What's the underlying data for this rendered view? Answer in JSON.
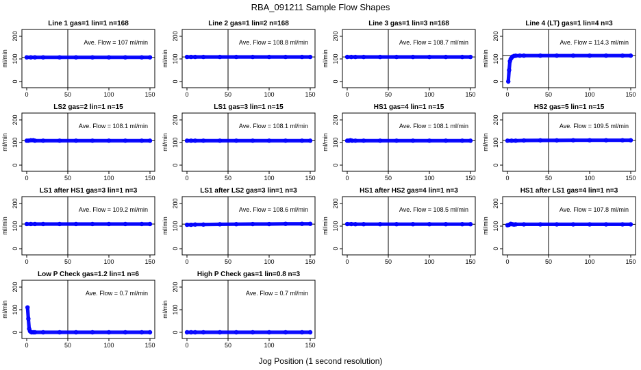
{
  "figure": {
    "title": "RBA_091211  Sample Flow Shapes",
    "xlabel": "Jog Position (1 second resolution)"
  },
  "chart_data": [
    {
      "type": "scatter",
      "title": "Line 1 gas=1 lin=1 n=168",
      "ylabel": "ml/min",
      "annotation": "Ave. Flow =  107  ml/min",
      "xlim": [
        0,
        150
      ],
      "ylim": [
        0,
        200
      ],
      "xticks": [
        0,
        50,
        100,
        150
      ],
      "yticks": [
        0,
        100,
        200
      ],
      "vline_x": 50,
      "hline_y": 107,
      "series": [
        {
          "name": "",
          "color": "#0000ff",
          "x": [
            0,
            5,
            10,
            20,
            40,
            60,
            80,
            100,
            120,
            140,
            150
          ],
          "y": [
            107,
            107,
            107,
            107,
            107,
            107,
            107,
            107,
            107,
            107,
            107
          ]
        }
      ]
    },
    {
      "type": "scatter",
      "title": "Line 2 gas=1 lin=2 n=168",
      "ylabel": "ml/min",
      "annotation": "Ave. Flow =  108.8  ml/min",
      "xlim": [
        0,
        150
      ],
      "ylim": [
        0,
        200
      ],
      "xticks": [
        0,
        50,
        100,
        150
      ],
      "yticks": [
        0,
        100,
        200
      ],
      "vline_x": 50,
      "hline_y": 108.8,
      "series": [
        {
          "name": "",
          "color": "#0000ff",
          "x": [
            0,
            5,
            10,
            20,
            40,
            60,
            80,
            100,
            120,
            140,
            150
          ],
          "y": [
            108.8,
            108.8,
            108.8,
            108.8,
            108.8,
            108.8,
            108.8,
            108.8,
            108.8,
            108.8,
            108.8
          ]
        }
      ]
    },
    {
      "type": "scatter",
      "title": "Line 3 gas=1 lin=3 n=168",
      "ylabel": "ml/min",
      "annotation": "Ave. Flow =  108.7  ml/min",
      "xlim": [
        0,
        150
      ],
      "ylim": [
        0,
        200
      ],
      "xticks": [
        0,
        50,
        100,
        150
      ],
      "yticks": [
        0,
        100,
        200
      ],
      "vline_x": 50,
      "hline_y": 108.7,
      "series": [
        {
          "name": "",
          "color": "#0000ff",
          "x": [
            0,
            5,
            10,
            20,
            40,
            60,
            80,
            100,
            120,
            140,
            150
          ],
          "y": [
            108.7,
            108.7,
            108.7,
            108.7,
            108.7,
            108.7,
            108.7,
            108.7,
            108.7,
            108.7,
            108.7
          ]
        }
      ]
    },
    {
      "type": "scatter",
      "title": "Line 4 (LT) gas=1 lin=4 n=3",
      "ylabel": "ml/min",
      "annotation": "Ave. Flow =  114.3  ml/min",
      "xlim": [
        0,
        150
      ],
      "ylim": [
        0,
        200
      ],
      "xticks": [
        0,
        50,
        100,
        150
      ],
      "yticks": [
        0,
        100,
        200
      ],
      "vline_x": 50,
      "hline_y": 114.3,
      "series": [
        {
          "name": "",
          "color": "#0000ff",
          "x": [
            1,
            2,
            3,
            4,
            5,
            6,
            8,
            10,
            15,
            20,
            40,
            60,
            80,
            100,
            120,
            140,
            150
          ],
          "y": [
            0,
            50,
            90,
            100,
            105,
            110,
            113,
            114,
            114.5,
            114.5,
            114.5,
            114.5,
            114.5,
            114.5,
            114.5,
            114.5,
            114.5
          ]
        }
      ]
    },
    {
      "type": "scatter",
      "title": "LS2 gas=2 lin=1 n=15",
      "ylabel": "ml/min",
      "annotation": "Ave. Flow =  108.1  ml/min",
      "xlim": [
        0,
        150
      ],
      "ylim": [
        0,
        200
      ],
      "xticks": [
        0,
        50,
        100,
        150
      ],
      "yticks": [
        0,
        100,
        200
      ],
      "vline_x": 50,
      "hline_y": 108.1,
      "series": [
        {
          "name": "",
          "color": "#0000ff",
          "x": [
            0,
            2,
            5,
            8,
            10,
            20,
            40,
            60,
            80,
            100,
            120,
            140,
            150
          ],
          "y": [
            108,
            108,
            110,
            110,
            108,
            108,
            108,
            108,
            108,
            108,
            108,
            108,
            108
          ]
        }
      ]
    },
    {
      "type": "scatter",
      "title": "LS1 gas=3 lin=1 n=15",
      "ylabel": "ml/min",
      "annotation": "Ave. Flow =  108.1  ml/min",
      "xlim": [
        0,
        150
      ],
      "ylim": [
        0,
        200
      ],
      "xticks": [
        0,
        50,
        100,
        150
      ],
      "yticks": [
        0,
        100,
        200
      ],
      "vline_x": 50,
      "hline_y": 108.1,
      "series": [
        {
          "name": "",
          "color": "#0000ff",
          "x": [
            0,
            5,
            10,
            20,
            40,
            60,
            80,
            100,
            120,
            140,
            150
          ],
          "y": [
            108,
            108,
            108,
            108,
            108,
            108,
            108,
            108,
            108,
            108,
            108
          ]
        }
      ]
    },
    {
      "type": "scatter",
      "title": "HS1 gas=4 lin=1 n=15",
      "ylabel": "ml/min",
      "annotation": "Ave. Flow =  108.1  ml/min",
      "xlim": [
        0,
        150
      ],
      "ylim": [
        0,
        200
      ],
      "xticks": [
        0,
        50,
        100,
        150
      ],
      "yticks": [
        0,
        100,
        200
      ],
      "vline_x": 50,
      "hline_y": 108.1,
      "series": [
        {
          "name": "",
          "color": "#0000ff",
          "x": [
            0,
            2,
            4,
            6,
            10,
            20,
            40,
            60,
            80,
            100,
            120,
            140,
            150
          ],
          "y": [
            108,
            108,
            110,
            108,
            108,
            108,
            108,
            108,
            108,
            108,
            108,
            108,
            108
          ]
        }
      ]
    },
    {
      "type": "scatter",
      "title": "HS2 gas=5 lin=1 n=15",
      "ylabel": "ml/min",
      "annotation": "Ave. Flow =  109.5  ml/min",
      "xlim": [
        0,
        150
      ],
      "ylim": [
        0,
        200
      ],
      "xticks": [
        0,
        50,
        100,
        150
      ],
      "yticks": [
        0,
        100,
        200
      ],
      "vline_x": 50,
      "hline_y": 109.5,
      "series": [
        {
          "name": "",
          "color": "#0000ff",
          "x": [
            0,
            5,
            10,
            20,
            40,
            60,
            80,
            100,
            120,
            140,
            150
          ],
          "y": [
            108,
            108,
            108,
            109,
            109.5,
            109.5,
            110,
            110,
            110,
            110,
            110
          ]
        }
      ]
    },
    {
      "type": "scatter",
      "title": "LS1 after HS1 gas=3 lin=1 n=3",
      "ylabel": "ml/min",
      "annotation": "Ave. Flow =  109.2  ml/min",
      "xlim": [
        0,
        150
      ],
      "ylim": [
        0,
        200
      ],
      "xticks": [
        0,
        50,
        100,
        150
      ],
      "yticks": [
        0,
        100,
        200
      ],
      "vline_x": 50,
      "hline_y": 109.2,
      "series": [
        {
          "name": "",
          "color": "#0000ff",
          "x": [
            0,
            5,
            10,
            20,
            40,
            60,
            80,
            100,
            120,
            140,
            150
          ],
          "y": [
            109.2,
            109.2,
            109.2,
            109.2,
            109.2,
            109.2,
            109.2,
            109.2,
            109.2,
            109.2,
            109.2
          ]
        }
      ]
    },
    {
      "type": "scatter",
      "title": "LS1 after LS2 gas=3 lin=1 n=3",
      "ylabel": "ml/min",
      "annotation": "Ave. Flow =  108.6  ml/min",
      "xlim": [
        0,
        150
      ],
      "ylim": [
        0,
        200
      ],
      "xticks": [
        0,
        50,
        100,
        150
      ],
      "yticks": [
        0,
        100,
        200
      ],
      "vline_x": 50,
      "hline_y": 108.6,
      "series": [
        {
          "name": "",
          "color": "#0000ff",
          "x": [
            0,
            5,
            10,
            20,
            40,
            60,
            80,
            100,
            120,
            140,
            150
          ],
          "y": [
            106,
            106,
            107,
            107,
            108,
            108.5,
            109,
            109,
            110,
            110,
            110
          ]
        }
      ]
    },
    {
      "type": "scatter",
      "title": "HS1 after HS2 gas=4 lin=1 n=3",
      "ylabel": "ml/min",
      "annotation": "Ave. Flow =  108.5  ml/min",
      "xlim": [
        0,
        150
      ],
      "ylim": [
        0,
        200
      ],
      "xticks": [
        0,
        50,
        100,
        150
      ],
      "yticks": [
        0,
        100,
        200
      ],
      "vline_x": 50,
      "hline_y": 108.5,
      "series": [
        {
          "name": "",
          "color": "#0000ff",
          "x": [
            0,
            5,
            10,
            20,
            40,
            60,
            80,
            100,
            120,
            140,
            150
          ],
          "y": [
            109,
            109,
            108.5,
            108.5,
            108.5,
            108.5,
            108.5,
            108.5,
            108.5,
            108.5,
            108.5
          ]
        }
      ]
    },
    {
      "type": "scatter",
      "title": "HS1 after LS1 gas=4 lin=1 n=3",
      "ylabel": "ml/min",
      "annotation": "Ave. Flow =  107.8  ml/min",
      "xlim": [
        0,
        150
      ],
      "ylim": [
        0,
        200
      ],
      "xticks": [
        0,
        50,
        100,
        150
      ],
      "yticks": [
        0,
        100,
        200
      ],
      "vline_x": 50,
      "hline_y": 107.8,
      "series": [
        {
          "name": "",
          "color": "#0000ff",
          "x": [
            0,
            2,
            4,
            6,
            8,
            10,
            20,
            40,
            60,
            80,
            100,
            120,
            140,
            150
          ],
          "y": [
            104,
            106,
            110,
            108,
            107,
            107.8,
            107.8,
            107.8,
            107.8,
            107.8,
            107.8,
            107.8,
            107.8,
            107.8
          ]
        }
      ]
    },
    {
      "type": "scatter",
      "title": "Low P Check gas=1.2 lin=1 n=6",
      "ylabel": "ml/min",
      "annotation": "Ave. Flow =  0.7  ml/min",
      "xlim": [
        0,
        150
      ],
      "ylim": [
        0,
        200
      ],
      "xticks": [
        0,
        50,
        100,
        150
      ],
      "yticks": [
        0,
        100,
        200
      ],
      "vline_x": 50,
      "hline_y": null,
      "series": [
        {
          "name": "",
          "color": "#0000ff",
          "x": [
            1,
            2,
            3,
            4,
            5,
            6,
            8,
            10,
            20,
            40,
            60,
            80,
            100,
            120,
            140,
            150
          ],
          "y": [
            110,
            60,
            15,
            5,
            2,
            0,
            0,
            0,
            0,
            0,
            0,
            0,
            0,
            0,
            0,
            0
          ]
        }
      ]
    },
    {
      "type": "scatter",
      "title": "High P Check gas=1 lin=0.8 n=3",
      "ylabel": "ml/min",
      "annotation": "Ave. Flow =  0.7  ml/min",
      "xlim": [
        0,
        150
      ],
      "ylim": [
        0,
        200
      ],
      "xticks": [
        0,
        50,
        100,
        150
      ],
      "yticks": [
        0,
        100,
        200
      ],
      "vline_x": 50,
      "hline_y": null,
      "series": [
        {
          "name": "",
          "color": "#0000ff",
          "x": [
            0,
            5,
            10,
            20,
            40,
            60,
            80,
            100,
            120,
            140,
            150
          ],
          "y": [
            0,
            0,
            0,
            0,
            0,
            0,
            0,
            0,
            0,
            0,
            0
          ]
        }
      ]
    }
  ]
}
